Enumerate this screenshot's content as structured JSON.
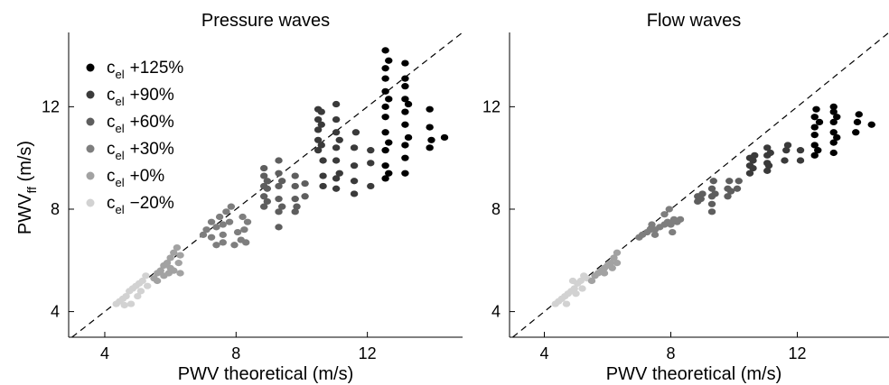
{
  "figure": {
    "ylabel_main": "PWV",
    "ylabel_sub": "ff",
    "ylabel_unit": " (m/s)"
  },
  "legend": {
    "prefix_main": "c",
    "prefix_sub": "el",
    "entries": [
      {
        "label": "+125%",
        "color": "#000000"
      },
      {
        "label": "+90%",
        "color": "#3a3a3a"
      },
      {
        "label": "+60%",
        "color": "#5e5e5e"
      },
      {
        "label": "+30%",
        "color": "#7e7e7e"
      },
      {
        "label": "+0%",
        "color": "#a2a2a2"
      },
      {
        "label": "−20%",
        "color": "#d2d2d2"
      }
    ]
  },
  "chart_data": [
    {
      "type": "scatter",
      "title": "Pressure waves",
      "xlabel": "PWV theoretical (m/s)",
      "ylabel": "PWV_ff (m/s)",
      "xlim": [
        2.9,
        14.9
      ],
      "ylim": [
        3.0,
        14.9
      ],
      "xticks": [
        4,
        8,
        12
      ],
      "yticks": [
        4,
        8,
        12
      ],
      "identity_line": true,
      "legend_position": "top-left",
      "series": [
        {
          "name": "+125%",
          "color": "#000000",
          "points": [
            [
              12.55,
              9.2
            ],
            [
              12.55,
              9.7
            ],
            [
              12.55,
              10.3
            ],
            [
              12.55,
              11.0
            ],
            [
              12.55,
              11.6
            ],
            [
              12.55,
              12.0
            ],
            [
              12.55,
              12.6
            ],
            [
              12.55,
              13.1
            ],
            [
              12.55,
              13.5
            ],
            [
              12.55,
              14.2
            ],
            [
              12.65,
              9.4
            ],
            [
              12.65,
              10.6
            ],
            [
              12.65,
              12.3
            ],
            [
              12.65,
              13.8
            ],
            [
              13.15,
              9.4
            ],
            [
              13.15,
              10.0
            ],
            [
              13.15,
              10.5
            ],
            [
              13.15,
              11.3
            ],
            [
              13.15,
              11.8
            ],
            [
              13.15,
              12.3
            ],
            [
              13.15,
              12.8
            ],
            [
              13.15,
              13.1
            ],
            [
              13.15,
              13.7
            ],
            [
              13.25,
              10.8
            ],
            [
              13.25,
              12.1
            ],
            [
              13.9,
              10.4
            ],
            [
              13.9,
              11.2
            ],
            [
              13.9,
              11.9
            ],
            [
              13.95,
              10.7
            ],
            [
              14.35,
              10.8
            ]
          ]
        },
        {
          "name": "+90%",
          "color": "#3a3a3a",
          "points": [
            [
              10.5,
              10.3
            ],
            [
              10.5,
              10.7
            ],
            [
              10.5,
              11.1
            ],
            [
              10.5,
              11.5
            ],
            [
              10.5,
              11.9
            ],
            [
              10.6,
              10.5
            ],
            [
              10.6,
              11.3
            ],
            [
              10.6,
              11.8
            ],
            [
              10.65,
              8.9
            ],
            [
              10.65,
              9.3
            ],
            [
              10.65,
              9.9
            ],
            [
              11.05,
              8.8
            ],
            [
              11.05,
              9.2
            ],
            [
              11.05,
              9.9
            ],
            [
              11.05,
              10.4
            ],
            [
              11.05,
              11.0
            ],
            [
              11.05,
              11.5
            ],
            [
              11.05,
              12.1
            ],
            [
              11.15,
              9.4
            ],
            [
              11.15,
              10.7
            ],
            [
              11.6,
              8.6
            ],
            [
              11.6,
              9.1
            ],
            [
              11.6,
              9.7
            ],
            [
              11.6,
              10.4
            ],
            [
              11.65,
              11.0
            ],
            [
              12.1,
              8.9
            ],
            [
              12.1,
              9.8
            ],
            [
              12.1,
              10.3
            ]
          ]
        },
        {
          "name": "+60%",
          "color": "#5e5e5e",
          "points": [
            [
              8.85,
              8.1
            ],
            [
              8.85,
              8.5
            ],
            [
              8.85,
              8.9
            ],
            [
              8.85,
              9.3
            ],
            [
              8.85,
              9.6
            ],
            [
              8.95,
              8.3
            ],
            [
              8.95,
              8.8
            ],
            [
              8.95,
              9.1
            ],
            [
              9.3,
              7.3
            ],
            [
              9.3,
              7.9
            ],
            [
              9.3,
              8.4
            ],
            [
              9.3,
              8.9
            ],
            [
              9.3,
              9.4
            ],
            [
              9.3,
              9.9
            ],
            [
              9.4,
              8.1
            ],
            [
              9.4,
              9.1
            ],
            [
              9.8,
              7.9
            ],
            [
              9.8,
              8.4
            ],
            [
              9.8,
              8.9
            ],
            [
              9.8,
              9.3
            ],
            [
              9.85,
              8.1
            ],
            [
              10.1,
              8.5
            ],
            [
              10.1,
              9.0
            ]
          ]
        },
        {
          "name": "+30%",
          "color": "#7e7e7e",
          "points": [
            [
              7.0,
              7.0
            ],
            [
              7.1,
              7.2
            ],
            [
              7.25,
              6.9
            ],
            [
              7.25,
              7.5
            ],
            [
              7.4,
              7.3
            ],
            [
              7.5,
              7.7
            ],
            [
              7.6,
              7.4
            ],
            [
              7.7,
              7.9
            ],
            [
              7.8,
              7.5
            ],
            [
              7.85,
              8.1
            ],
            [
              7.6,
              7.0
            ],
            [
              7.4,
              6.6
            ],
            [
              7.6,
              6.7
            ],
            [
              7.95,
              6.6
            ],
            [
              8.05,
              7.1
            ],
            [
              8.15,
              6.8
            ],
            [
              8.25,
              7.2
            ],
            [
              8.2,
              7.7
            ],
            [
              8.3,
              6.7
            ],
            [
              8.35,
              7.5
            ]
          ]
        },
        {
          "name": "+0%",
          "color": "#a2a2a2",
          "points": [
            [
              5.5,
              5.3
            ],
            [
              5.6,
              5.5
            ],
            [
              5.7,
              5.6
            ],
            [
              5.8,
              5.4
            ],
            [
              5.8,
              5.8
            ],
            [
              5.9,
              5.9
            ],
            [
              6.0,
              5.7
            ],
            [
              6.0,
              6.1
            ],
            [
              6.1,
              6.3
            ],
            [
              6.2,
              6.5
            ],
            [
              5.6,
              5.2
            ],
            [
              5.95,
              5.5
            ],
            [
              6.1,
              5.6
            ],
            [
              6.25,
              5.9
            ],
            [
              6.3,
              6.2
            ],
            [
              6.3,
              5.5
            ]
          ]
        },
        {
          "name": "−20%",
          "color": "#d2d2d2",
          "points": [
            [
              4.35,
              4.3
            ],
            [
              4.45,
              4.4
            ],
            [
              4.55,
              4.5
            ],
            [
              4.65,
              4.6
            ],
            [
              4.75,
              4.8
            ],
            [
              4.85,
              4.9
            ],
            [
              4.95,
              5.0
            ],
            [
              5.05,
              5.1
            ],
            [
              5.15,
              5.2
            ],
            [
              5.25,
              5.4
            ],
            [
              5.0,
              4.6
            ],
            [
              4.8,
              4.3
            ],
            [
              5.1,
              4.8
            ],
            [
              5.3,
              5.0
            ],
            [
              4.6,
              4.25
            ]
          ]
        }
      ]
    },
    {
      "type": "scatter",
      "title": "Flow waves",
      "xlabel": "PWV theoretical (m/s)",
      "ylabel": "",
      "xlim": [
        2.9,
        14.9
      ],
      "ylim": [
        3.0,
        14.9
      ],
      "xticks": [
        4,
        8,
        12
      ],
      "yticks": [
        4,
        8,
        12
      ],
      "identity_line": true,
      "series": [
        {
          "name": "+125%",
          "color": "#000000",
          "points": [
            [
              12.55,
              10.1
            ],
            [
              12.55,
              10.5
            ],
            [
              12.55,
              10.9
            ],
            [
              12.55,
              11.2
            ],
            [
              12.55,
              11.6
            ],
            [
              12.6,
              11.9
            ],
            [
              12.65,
              10.3
            ],
            [
              12.7,
              11.4
            ],
            [
              13.15,
              10.2
            ],
            [
              13.15,
              10.6
            ],
            [
              13.15,
              11.0
            ],
            [
              13.15,
              11.4
            ],
            [
              13.15,
              11.8
            ],
            [
              13.15,
              12.0
            ],
            [
              13.25,
              10.8
            ],
            [
              13.25,
              11.6
            ],
            [
              13.85,
              11.0
            ],
            [
              13.9,
              11.4
            ],
            [
              13.95,
              11.7
            ],
            [
              14.35,
              11.3
            ]
          ]
        },
        {
          "name": "+90%",
          "color": "#3a3a3a",
          "points": [
            [
              10.5,
              9.4
            ],
            [
              10.5,
              9.7
            ],
            [
              10.5,
              10.0
            ],
            [
              10.6,
              9.6
            ],
            [
              10.6,
              9.9
            ],
            [
              10.65,
              10.1
            ],
            [
              11.05,
              9.5
            ],
            [
              11.05,
              9.8
            ],
            [
              11.05,
              10.1
            ],
            [
              11.05,
              10.4
            ],
            [
              11.1,
              9.7
            ],
            [
              11.15,
              10.2
            ],
            [
              11.6,
              9.9
            ],
            [
              11.65,
              10.3
            ],
            [
              11.7,
              10.5
            ],
            [
              12.1,
              9.9
            ],
            [
              12.1,
              10.3
            ]
          ]
        },
        {
          "name": "+60%",
          "color": "#5e5e5e",
          "points": [
            [
              8.85,
              8.3
            ],
            [
              8.85,
              8.5
            ],
            [
              8.95,
              8.4
            ],
            [
              9.0,
              8.6
            ],
            [
              9.3,
              7.9
            ],
            [
              9.3,
              8.2
            ],
            [
              9.3,
              8.5
            ],
            [
              9.3,
              8.8
            ],
            [
              9.35,
              9.1
            ],
            [
              9.4,
              8.6
            ],
            [
              9.8,
              8.5
            ],
            [
              9.8,
              8.8
            ],
            [
              9.85,
              9.1
            ],
            [
              9.9,
              8.7
            ],
            [
              10.1,
              8.8
            ],
            [
              10.15,
              9.1
            ]
          ]
        },
        {
          "name": "+30%",
          "color": "#7e7e7e",
          "points": [
            [
              7.0,
              6.9
            ],
            [
              7.1,
              7.0
            ],
            [
              7.25,
              7.1
            ],
            [
              7.35,
              7.2
            ],
            [
              7.5,
              7.2
            ],
            [
              7.65,
              7.3
            ],
            [
              7.8,
              7.4
            ],
            [
              7.9,
              7.5
            ],
            [
              8.0,
              7.4
            ],
            [
              8.1,
              7.6
            ],
            [
              8.2,
              7.5
            ],
            [
              8.3,
              7.6
            ],
            [
              7.4,
              7.4
            ],
            [
              7.8,
              7.8
            ],
            [
              7.95,
              8.0
            ],
            [
              7.5,
              7.0
            ],
            [
              8.05,
              7.1
            ]
          ]
        },
        {
          "name": "+0%",
          "color": "#a2a2a2",
          "points": [
            [
              5.5,
              5.2
            ],
            [
              5.6,
              5.4
            ],
            [
              5.7,
              5.5
            ],
            [
              5.8,
              5.6
            ],
            [
              5.9,
              5.7
            ],
            [
              6.0,
              5.8
            ],
            [
              6.1,
              5.9
            ],
            [
              6.2,
              6.1
            ],
            [
              6.3,
              6.3
            ],
            [
              5.9,
              5.5
            ],
            [
              6.15,
              5.7
            ],
            [
              6.3,
              5.9
            ]
          ]
        },
        {
          "name": "−20%",
          "color": "#d2d2d2",
          "points": [
            [
              4.35,
              4.3
            ],
            [
              4.45,
              4.4
            ],
            [
              4.55,
              4.5
            ],
            [
              4.65,
              4.6
            ],
            [
              4.75,
              4.7
            ],
            [
              4.85,
              4.8
            ],
            [
              4.95,
              4.9
            ],
            [
              5.05,
              5.1
            ],
            [
              5.15,
              5.2
            ],
            [
              5.25,
              5.4
            ],
            [
              5.35,
              5.3
            ],
            [
              5.0,
              4.7
            ],
            [
              4.9,
              5.2
            ],
            [
              5.2,
              4.9
            ],
            [
              4.7,
              4.3
            ]
          ]
        }
      ]
    }
  ]
}
